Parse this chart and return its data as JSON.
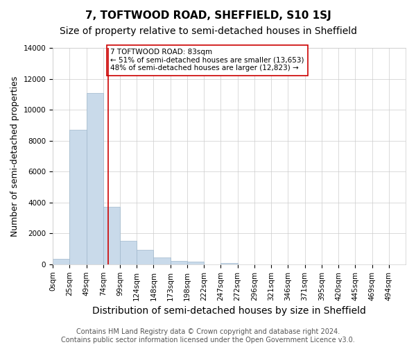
{
  "title": "7, TOFTWOOD ROAD, SHEFFIELD, S10 1SJ",
  "subtitle": "Size of property relative to semi-detached houses in Sheffield",
  "xlabel": "Distribution of semi-detached houses by size in Sheffield",
  "ylabel": "Number of semi-detached properties",
  "footer": "Contains HM Land Registry data © Crown copyright and database right 2024.\nContains public sector information licensed under the Open Government Licence v3.0.",
  "bin_labels": [
    "0sqm",
    "25sqm",
    "49sqm",
    "74sqm",
    "99sqm",
    "124sqm",
    "148sqm",
    "173sqm",
    "198sqm",
    "222sqm",
    "247sqm",
    "272sqm",
    "296sqm",
    "321sqm",
    "346sqm",
    "371sqm",
    "395sqm",
    "420sqm",
    "445sqm",
    "469sqm",
    "494sqm"
  ],
  "bar_values": [
    350,
    8700,
    11100,
    3700,
    1500,
    950,
    450,
    200,
    150,
    0,
    100,
    0,
    0,
    0,
    0,
    0,
    0,
    0,
    0,
    0
  ],
  "bar_color": "#c9daea",
  "bar_edge_color": "#a0b8cc",
  "property_sqm": 83,
  "property_line_color": "#cc0000",
  "annotation_text": "7 TOFTWOOD ROAD: 83sqm\n← 51% of semi-detached houses are smaller (13,653)\n48% of semi-detached houses are larger (12,823) →",
  "annotation_box_color": "#ffffff",
  "annotation_box_edge": "#cc0000",
  "ylim": [
    0,
    14000
  ],
  "yticks": [
    0,
    2000,
    4000,
    6000,
    8000,
    10000,
    12000,
    14000
  ],
  "grid_color": "#cccccc",
  "background_color": "#ffffff",
  "title_fontsize": 11,
  "subtitle_fontsize": 10,
  "axis_label_fontsize": 9,
  "tick_fontsize": 7.5,
  "footer_fontsize": 7
}
